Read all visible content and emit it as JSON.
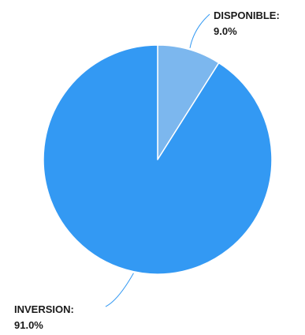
{
  "chart_data": {
    "type": "pie",
    "title": "",
    "start_angle_deg": 0,
    "direction": "clockwise",
    "slices": [
      {
        "label": "DISPONIBLE:",
        "value": 9.0,
        "value_label": "9.0%",
        "color": "#7cb7ee"
      },
      {
        "label": "INVERSION:",
        "value": 91.0,
        "value_label": "91.0%",
        "color": "#3399f3"
      }
    ],
    "separator_color": "#ffffff",
    "leader_color": "#3399f3"
  }
}
